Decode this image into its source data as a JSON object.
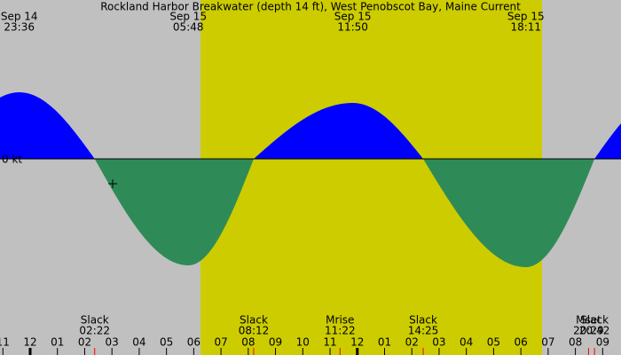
{
  "title": "Rockland Harbor Breakwater (depth 14 ft), West Penobscot Bay, Maine Current",
  "y_label": "0 kt",
  "peaks": [
    {
      "date": "Sep 14",
      "time": "23:36"
    },
    {
      "date": "Sep 15",
      "time": "05:48"
    },
    {
      "date": "Sep 15",
      "time": "11:50"
    },
    {
      "date": "Sep 15",
      "time": "18:11"
    }
  ],
  "events": [
    {
      "name": "Slack",
      "time": "02:22"
    },
    {
      "name": "Slack",
      "time": "08:12"
    },
    {
      "name": "Mrise",
      "time": "11:22"
    },
    {
      "name": "Slack",
      "time": "14:25"
    },
    {
      "name": "Mset",
      "time": "20:29"
    },
    {
      "name": "Slack",
      "time": "20:42"
    }
  ],
  "hours": [
    "11",
    "12",
    "01",
    "02",
    "03",
    "04",
    "05",
    "06",
    "07",
    "08",
    "09",
    "10",
    "11",
    "12",
    "01",
    "02",
    "03",
    "04",
    "05",
    "06",
    "07",
    "08",
    "09"
  ]
}
